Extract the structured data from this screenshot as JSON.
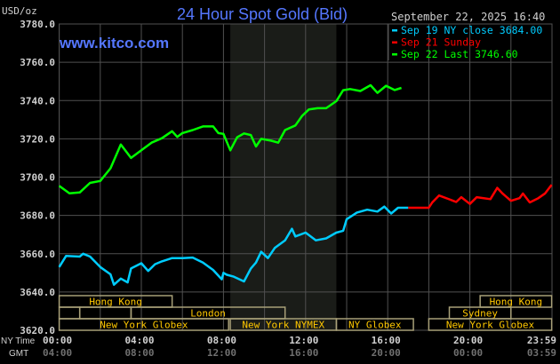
{
  "chart_data": {
    "type": "line",
    "title": "24 Hour Spot Gold (Bid)",
    "website": "www.kitco.com",
    "unit_label": "USD/oz",
    "datetime": "September 22, 2025 16:40",
    "ylim": [
      3620,
      3780
    ],
    "y_ticks": [
      "3620.0",
      "3640.0",
      "3660.0",
      "3680.0",
      "3700.0",
      "3720.0",
      "3740.0",
      "3760.0",
      "3780.0"
    ],
    "x_range": [
      "00:00",
      "23:59"
    ],
    "x_axis_rows": [
      {
        "label": "NY Time",
        "ticks": [
          "00:00",
          "04:00",
          "08:00",
          "12:00",
          "16:00",
          "20:00",
          "23:59"
        ]
      },
      {
        "label": "GMT",
        "ticks": [
          "04:00",
          "08:00",
          "12:00",
          "16:00",
          "20:00",
          "00:00",
          "03:59"
        ]
      }
    ],
    "grid": true,
    "legend_placement": "top-right",
    "highlight_band": {
      "start": "08:20",
      "end": "13:30",
      "color": "#1a1c18"
    },
    "series": [
      {
        "name": "Sep 19 NY close 3684.00",
        "color": "#00ccff",
        "points": [
          [
            "00:00",
            3653
          ],
          [
            "00:20",
            3658.8
          ],
          [
            "01:00",
            3658.5
          ],
          [
            "01:10",
            3660
          ],
          [
            "01:30",
            3658.5
          ],
          [
            "02:00",
            3653
          ],
          [
            "02:30",
            3649.2
          ],
          [
            "02:40",
            3643.8
          ],
          [
            "03:00",
            3647
          ],
          [
            "03:20",
            3645
          ],
          [
            "03:30",
            3652.3
          ],
          [
            "04:00",
            3655
          ],
          [
            "04:20",
            3651
          ],
          [
            "04:40",
            3654.5
          ],
          [
            "05:00",
            3656
          ],
          [
            "05:30",
            3657.7
          ],
          [
            "06:00",
            3657.7
          ],
          [
            "06:30",
            3658
          ],
          [
            "07:00",
            3655.4
          ],
          [
            "07:30",
            3651.5
          ],
          [
            "07:55",
            3646.6
          ],
          [
            "08:00",
            3650
          ],
          [
            "08:10",
            3649
          ],
          [
            "08:30",
            3648
          ],
          [
            "09:00",
            3645.5
          ],
          [
            "09:20",
            3652.3
          ],
          [
            "09:35",
            3655.4
          ],
          [
            "09:50",
            3661
          ],
          [
            "10:10",
            3657.7
          ],
          [
            "10:30",
            3663
          ],
          [
            "11:00",
            3667
          ],
          [
            "11:20",
            3673
          ],
          [
            "11:30",
            3669
          ],
          [
            "12:00",
            3671
          ],
          [
            "12:30",
            3667
          ],
          [
            "13:00",
            3668
          ],
          [
            "13:30",
            3671
          ],
          [
            "13:50",
            3672
          ],
          [
            "14:00",
            3678
          ],
          [
            "14:30",
            3681.5
          ],
          [
            "15:00",
            3683
          ],
          [
            "15:30",
            3682
          ],
          [
            "15:50",
            3684.6
          ],
          [
            "16:10",
            3681
          ],
          [
            "16:30",
            3684
          ],
          [
            "17:00",
            3684
          ]
        ]
      },
      {
        "name": "Sep 21 Sunday",
        "color": "#ff0000",
        "points": [
          [
            "17:00",
            3684
          ],
          [
            "18:00",
            3684
          ],
          [
            "18:10",
            3686.8
          ],
          [
            "18:30",
            3690.4
          ],
          [
            "19:00",
            3688.4
          ],
          [
            "19:20",
            3687
          ],
          [
            "19:35",
            3689.5
          ],
          [
            "20:00",
            3686
          ],
          [
            "20:20",
            3689.5
          ],
          [
            "21:00",
            3688.5
          ],
          [
            "21:20",
            3694.4
          ],
          [
            "21:35",
            3691.5
          ],
          [
            "22:00",
            3687.6
          ],
          [
            "22:25",
            3689
          ],
          [
            "22:35",
            3691.4
          ],
          [
            "22:55",
            3686.8
          ],
          [
            "23:20",
            3689
          ],
          [
            "23:40",
            3691.5
          ],
          [
            "23:59",
            3696
          ]
        ]
      },
      {
        "name": "Sep 22 Last 3746.60",
        "color": "#00ff00",
        "points": [
          [
            "00:00",
            3695.4
          ],
          [
            "00:30",
            3691.5
          ],
          [
            "01:00",
            3692
          ],
          [
            "01:30",
            3697
          ],
          [
            "02:00",
            3698
          ],
          [
            "02:30",
            3704.6
          ],
          [
            "03:00",
            3717
          ],
          [
            "03:30",
            3710
          ],
          [
            "04:00",
            3714
          ],
          [
            "04:30",
            3718
          ],
          [
            "05:00",
            3720.3
          ],
          [
            "05:30",
            3724
          ],
          [
            "05:45",
            3721
          ],
          [
            "06:00",
            3723
          ],
          [
            "06:30",
            3724.6
          ],
          [
            "07:00",
            3726.5
          ],
          [
            "07:30",
            3726.5
          ],
          [
            "07:45",
            3723
          ],
          [
            "08:00",
            3722.6
          ],
          [
            "08:20",
            3714
          ],
          [
            "08:40",
            3720.8
          ],
          [
            "09:00",
            3722.8
          ],
          [
            "09:20",
            3722
          ],
          [
            "09:35",
            3716
          ],
          [
            "09:50",
            3720
          ],
          [
            "10:20",
            3719
          ],
          [
            "10:40",
            3718
          ],
          [
            "11:00",
            3724.6
          ],
          [
            "11:30",
            3727
          ],
          [
            "11:50",
            3732
          ],
          [
            "12:10",
            3735.4
          ],
          [
            "12:35",
            3736
          ],
          [
            "13:00",
            3736
          ],
          [
            "13:30",
            3739.7
          ],
          [
            "13:50",
            3745.4
          ],
          [
            "14:10",
            3746
          ],
          [
            "14:40",
            3745
          ],
          [
            "15:10",
            3748
          ],
          [
            "15:30",
            3744
          ],
          [
            "15:55",
            3747.7
          ],
          [
            "16:20",
            3745.5
          ],
          [
            "16:40",
            3746.6
          ]
        ]
      }
    ],
    "sessions": [
      [
        {
          "label": "Hong Kong",
          "start": "00:00",
          "end": "05:30"
        },
        {
          "label": "Hong Kong",
          "start": "20:30",
          "end": "23:59"
        }
      ],
      [
        {
          "label": "",
          "start": "00:00",
          "end": "01:00"
        },
        {
          "label": "",
          "start": "01:00",
          "end": "03:30"
        },
        {
          "label": "London",
          "start": "03:30",
          "end": "11:00"
        },
        {
          "label": "Sydney",
          "start": "19:00",
          "end": "22:00"
        }
      ],
      [
        {
          "label": "New York Globex",
          "start": "00:00",
          "end": "08:15"
        },
        {
          "label": "New York NYMEX",
          "start": "08:20",
          "end": "13:30"
        },
        {
          "label": "NY Globex",
          "start": "13:30",
          "end": "17:15"
        },
        {
          "label": "New York Globex",
          "start": "18:00",
          "end": "23:59"
        }
      ]
    ],
    "colors": {
      "title": "#5577ff",
      "grid": "#505050",
      "axis_text": "#d0d0d0",
      "gmt_text": "#707070",
      "session_text": "#ffc800",
      "session_border": "#a8a078"
    }
  }
}
